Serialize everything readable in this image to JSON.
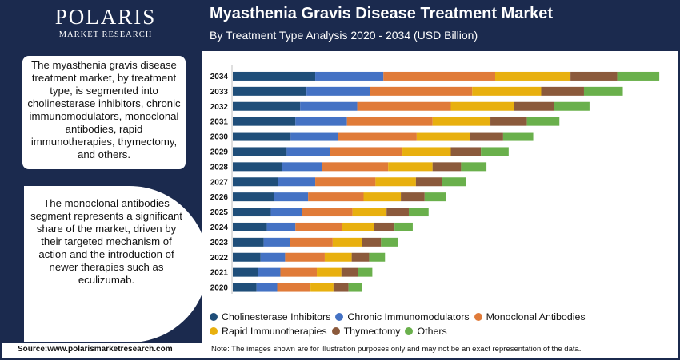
{
  "header": {
    "logo_name": "POLARIS",
    "logo_sub": "MARKET RESEARCH",
    "title": "Myasthenia Gravis Disease Treatment Market",
    "subtitle": "By Treatment Type Analysis 2020 - 2034 (USD Billion)"
  },
  "sidebar": {
    "description": "The myasthenia gravis disease treatment market, by treatment type, is segmented into cholinesterase inhibitors, chronic immunomodulators, monoclonal antibodies, rapid immunotherapies, thymectomy, and others.",
    "highlight": "The monoclonal antibodies segment represents a significant share of the market, driven by their targeted mechanism of action and the introduction of newer therapies such as eculizumab."
  },
  "footer": {
    "source": "Source:www.polarismarketresearch.com",
    "note": "Note: The images shown are for illustration purposes only and may not be an exact representation of the data."
  },
  "colors": {
    "brand": "#1b2a4e"
  },
  "chart_data": {
    "type": "bar",
    "orientation": "horizontal",
    "stacked": true,
    "categories": [
      "2034",
      "2033",
      "2032",
      "2031",
      "2030",
      "2029",
      "2028",
      "2027",
      "2026",
      "2025",
      "2024",
      "2023",
      "2022",
      "2021",
      "2020"
    ],
    "series": [
      {
        "name": "Cholinesterase Inhibitors",
        "color": "#1f4e79",
        "values": [
          1.04,
          0.93,
          0.85,
          0.79,
          0.73,
          0.68,
          0.62,
          0.57,
          0.52,
          0.48,
          0.43,
          0.39,
          0.35,
          0.32,
          0.3
        ]
      },
      {
        "name": "Chronic Immunomodulators",
        "color": "#4472c4",
        "values": [
          0.86,
          0.8,
          0.72,
          0.65,
          0.6,
          0.55,
          0.51,
          0.47,
          0.43,
          0.39,
          0.36,
          0.33,
          0.31,
          0.28,
          0.26
        ]
      },
      {
        "name": "Monoclonal Antibodies",
        "color": "#e07b39",
        "values": [
          1.41,
          1.29,
          1.18,
          1.08,
          0.99,
          0.91,
          0.83,
          0.76,
          0.7,
          0.64,
          0.59,
          0.54,
          0.5,
          0.46,
          0.42
        ]
      },
      {
        "name": "Rapid Immunotherapies",
        "color": "#e8b00f",
        "values": [
          0.95,
          0.87,
          0.8,
          0.73,
          0.67,
          0.61,
          0.56,
          0.51,
          0.47,
          0.43,
          0.4,
          0.37,
          0.34,
          0.31,
          0.29
        ]
      },
      {
        "name": "Thymectomy",
        "color": "#8b5a3c",
        "values": [
          0.59,
          0.54,
          0.5,
          0.46,
          0.42,
          0.38,
          0.36,
          0.33,
          0.3,
          0.28,
          0.26,
          0.24,
          0.22,
          0.21,
          0.19
        ]
      },
      {
        "name": "Others",
        "color": "#6ab04c",
        "values": [
          0.53,
          0.49,
          0.45,
          0.41,
          0.38,
          0.35,
          0.32,
          0.3,
          0.27,
          0.25,
          0.23,
          0.21,
          0.2,
          0.18,
          0.17
        ]
      }
    ],
    "xlim": [
      0,
      5.5
    ],
    "grid": false,
    "legend": "bottom"
  }
}
